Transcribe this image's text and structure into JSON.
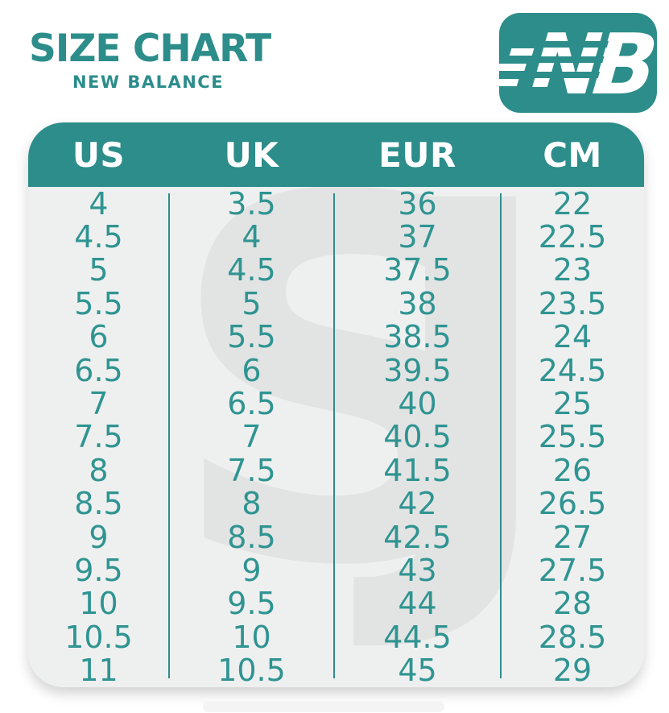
{
  "page": {
    "title": "SIZE CHART",
    "subtitle": "NEW BALANCE",
    "logo_letters": "NB",
    "colors": {
      "teal": "#2c8d8b",
      "table_body_bg": "#eef0ef",
      "watermark_gray": "#e2e4e3",
      "header_text": "#ffffff",
      "cell_text": "#2f9492"
    },
    "watermark_glyphs": {
      "left": "S",
      "right": "J"
    }
  },
  "chart_data": {
    "type": "table",
    "title": "SIZE CHART — NEW BALANCE",
    "columns": [
      "US",
      "UK",
      "EUR",
      "CM"
    ],
    "rows": [
      [
        "4",
        "3.5",
        "36",
        "22"
      ],
      [
        "4.5",
        "4",
        "37",
        "22.5"
      ],
      [
        "5",
        "4.5",
        "37.5",
        "23"
      ],
      [
        "5.5",
        "5",
        "38",
        "23.5"
      ],
      [
        "6",
        "5.5",
        "38.5",
        "24"
      ],
      [
        "6.5",
        "6",
        "39.5",
        "24.5"
      ],
      [
        "7",
        "6.5",
        "40",
        "25"
      ],
      [
        "7.5",
        "7",
        "40.5",
        "25.5"
      ],
      [
        "8",
        "7.5",
        "41.5",
        "26"
      ],
      [
        "8.5",
        "8",
        "42",
        "26.5"
      ],
      [
        "9",
        "8.5",
        "42.5",
        "27"
      ],
      [
        "9.5",
        "9",
        "43",
        "27.5"
      ],
      [
        "10",
        "9.5",
        "44",
        "28"
      ],
      [
        "10.5",
        "10",
        "44.5",
        "28.5"
      ],
      [
        "11",
        "10.5",
        "45",
        "29"
      ]
    ],
    "layout": {
      "header_position": "top",
      "column_dividers": true,
      "grid": false
    }
  }
}
